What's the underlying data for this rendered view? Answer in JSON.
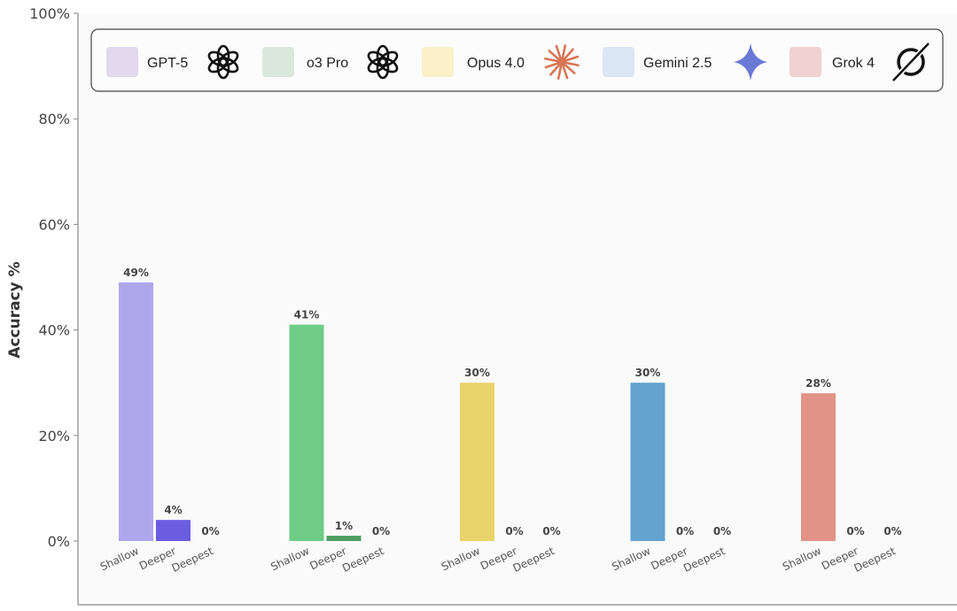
{
  "chart_data": {
    "type": "bar",
    "title": "",
    "xlabel": "",
    "ylabel": "Accuracy %",
    "ylim": [
      0,
      100
    ],
    "yticks": [
      "0%",
      "20%",
      "40%",
      "60%",
      "80%",
      "100%"
    ],
    "grid": false,
    "legend_placement": "top",
    "categories": [
      "Shallow",
      "Deeper",
      "Deepest"
    ],
    "series": [
      {
        "name": "GPT-5",
        "icon": "openai-logo-icon",
        "legend_color": "#e2d9ec",
        "bar_colors": [
          "#b0a6ec",
          "#6b5de0",
          "#6b5de0"
        ],
        "values": [
          49,
          4,
          0
        ],
        "labels": [
          "49%",
          "4%",
          "0%"
        ]
      },
      {
        "name": "o3 Pro",
        "icon": "openai-logo-icon",
        "legend_color": "#d9e8da",
        "bar_colors": [
          "#6fcc87",
          "#4e9e62",
          "#4e9e62"
        ],
        "values": [
          41,
          1,
          0
        ],
        "labels": [
          "41%",
          "1%",
          "0%"
        ]
      },
      {
        "name": "Opus 4.0",
        "icon": "anthropic-asterisk-icon",
        "legend_color": "#faf1cb",
        "bar_colors": [
          "#e9d36a",
          "#d9b94a",
          "#d9b94a"
        ],
        "values": [
          30,
          0,
          0
        ],
        "labels": [
          "30%",
          "0%",
          "0%"
        ]
      },
      {
        "name": "Gemini 2.5",
        "icon": "gemini-sparkle-icon",
        "legend_color": "#dbe6f5",
        "bar_colors": [
          "#64a2d0",
          "#3f7fb3",
          "#3f7fb3"
        ],
        "values": [
          30,
          0,
          0
        ],
        "labels": [
          "30%",
          "0%",
          "0%"
        ]
      },
      {
        "name": "Grok 4",
        "icon": "grok-logo-icon",
        "legend_color": "#f1d1d1",
        "bar_colors": [
          "#e19486",
          "#c96f60",
          "#c96f60"
        ],
        "values": [
          28,
          0,
          0
        ],
        "labels": [
          "28%",
          "0%",
          "0%"
        ]
      }
    ]
  }
}
